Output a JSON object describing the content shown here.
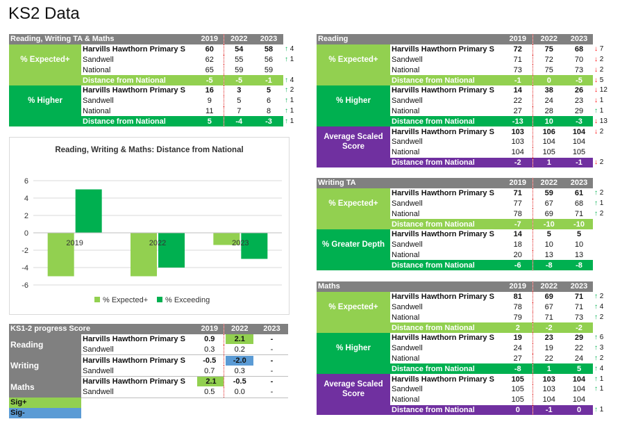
{
  "page_title": "KS2 Data",
  "years": [
    "2019",
    "2022",
    "2023"
  ],
  "rwm": {
    "title": "Reading, Writing TA & Maths",
    "blocks": [
      {
        "label": "% Expected+",
        "color": "light",
        "rows": [
          {
            "name": "Harvills Hawthorn Primary S",
            "vals": [
              "60",
              "54",
              "58"
            ],
            "bold": true,
            "dir": "up",
            "change": "4"
          },
          {
            "name": "Sandwell",
            "vals": [
              "62",
              "55",
              "56"
            ],
            "dir": "up",
            "change": "1"
          },
          {
            "name": "National",
            "vals": [
              "65",
              "59",
              "59"
            ],
            "dir": "",
            "change": ""
          }
        ],
        "dist": {
          "name": "Distance from National",
          "vals": [
            "-5",
            "-5",
            "-1"
          ],
          "dir": "up",
          "change": "4"
        }
      },
      {
        "label": "% Higher",
        "color": "dark",
        "rows": [
          {
            "name": "Harvills Hawthorn Primary S",
            "vals": [
              "16",
              "3",
              "5"
            ],
            "bold": true,
            "dir": "up",
            "change": "2"
          },
          {
            "name": "Sandwell",
            "vals": [
              "9",
              "5",
              "6"
            ],
            "dir": "up",
            "change": "1"
          },
          {
            "name": "National",
            "vals": [
              "11",
              "7",
              "8"
            ],
            "dir": "up",
            "change": "1"
          }
        ],
        "dist": {
          "name": "Distance from National",
          "vals": [
            "5",
            "-4",
            "-3"
          ],
          "dir": "up",
          "change": "1"
        }
      }
    ]
  },
  "chart_data": {
    "type": "bar",
    "title": "Reading, Writing & Maths:  Distance from National",
    "categories": [
      "2019",
      "2022",
      "2023"
    ],
    "series": [
      {
        "name": "% Expected+",
        "values": [
          -5,
          -5,
          -1.4
        ],
        "color": "#92d050"
      },
      {
        "name": "% Exceeding",
        "values": [
          5,
          -4,
          -3
        ],
        "color": "#00b050"
      }
    ],
    "ylim": [
      -6,
      6
    ],
    "yticks": [
      "6",
      "4",
      "2",
      "0",
      "-2",
      "-4",
      "-6"
    ],
    "grid": true,
    "legend": "bottom"
  },
  "progress": {
    "title": "KS1-2 progress Score",
    "key": {
      "sig_plus": "Sig+",
      "sig_minus": "Sig-"
    },
    "subjects": [
      {
        "label": "Reading",
        "rows": [
          {
            "name": "Harvills Hawthorn Primary S",
            "vals": [
              "0.9",
              "2.1",
              "-"
            ],
            "bold": true,
            "hl": [
              "",
              "g",
              ""
            ]
          },
          {
            "name": "Sandwell",
            "vals": [
              "0.3",
              "0.2",
              "-"
            ],
            "hl": [
              "",
              "",
              ""
            ]
          }
        ]
      },
      {
        "label": "Writing",
        "rows": [
          {
            "name": "Harvills Hawthorn Primary S",
            "vals": [
              "-0.5",
              "-2.0",
              "-"
            ],
            "bold": true,
            "hl": [
              "",
              "b",
              ""
            ]
          },
          {
            "name": "Sandwell",
            "vals": [
              "0.7",
              "0.3",
              "-"
            ],
            "hl": [
              "",
              "",
              ""
            ]
          }
        ]
      },
      {
        "label": "Maths",
        "rows": [
          {
            "name": "Harvills Hawthorn Primary S",
            "vals": [
              "2.1",
              "-0.5",
              "-"
            ],
            "bold": true,
            "hl": [
              "g",
              "",
              ""
            ]
          },
          {
            "name": "Sandwell",
            "vals": [
              "0.5",
              "0.0",
              "-"
            ],
            "hl": [
              "",
              "",
              ""
            ]
          }
        ]
      }
    ]
  },
  "reading": {
    "title": "Reading",
    "blocks": [
      {
        "label": "% Expected+",
        "color": "light",
        "rows": [
          {
            "name": "Harvills Hawthorn Primary S",
            "vals": [
              "72",
              "75",
              "68"
            ],
            "bold": true,
            "dir": "down",
            "change": "7"
          },
          {
            "name": "Sandwell",
            "vals": [
              "71",
              "72",
              "70"
            ],
            "dir": "down",
            "change": "2"
          },
          {
            "name": "National",
            "vals": [
              "73",
              "75",
              "73"
            ],
            "dir": "down",
            "change": "2"
          }
        ],
        "dist": {
          "name": "Distance from National",
          "vals": [
            "-1",
            "0",
            "-5"
          ],
          "dir": "down",
          "change": "5"
        }
      },
      {
        "label": "% Higher",
        "color": "dark",
        "rows": [
          {
            "name": "Harvills Hawthorn Primary S",
            "vals": [
              "14",
              "38",
              "26"
            ],
            "bold": true,
            "dir": "down",
            "change": "12"
          },
          {
            "name": "Sandwell",
            "vals": [
              "22",
              "24",
              "23"
            ],
            "dir": "down",
            "change": "1"
          },
          {
            "name": "National",
            "vals": [
              "27",
              "28",
              "29"
            ],
            "dir": "up",
            "change": "1"
          }
        ],
        "dist": {
          "name": "Distance from National",
          "vals": [
            "-13",
            "10",
            "-3"
          ],
          "dir": "down",
          "change": "13"
        }
      },
      {
        "label": "Average Scaled Score",
        "color": "purple",
        "rows": [
          {
            "name": "Harvills Hawthorn Primary S",
            "vals": [
              "103",
              "106",
              "104"
            ],
            "bold": true,
            "dir": "down",
            "change": "2"
          },
          {
            "name": "Sandwell",
            "vals": [
              "103",
              "104",
              "104"
            ],
            "dir": "",
            "change": ""
          },
          {
            "name": "National",
            "vals": [
              "104",
              "105",
              "105"
            ],
            "dir": "",
            "change": ""
          }
        ],
        "dist": {
          "name": "Distance from National",
          "vals": [
            "-2",
            "1",
            "-1"
          ],
          "dir": "down",
          "change": "2"
        }
      }
    ]
  },
  "writing": {
    "title": "Writing TA",
    "blocks": [
      {
        "label": "% Expected+",
        "color": "light",
        "rows": [
          {
            "name": "Harvills Hawthorn Primary S",
            "vals": [
              "71",
              "59",
              "61"
            ],
            "bold": true,
            "dir": "up",
            "change": "2"
          },
          {
            "name": "Sandwell",
            "vals": [
              "77",
              "67",
              "68"
            ],
            "dir": "up",
            "change": "1"
          },
          {
            "name": "National",
            "vals": [
              "78",
              "69",
              "71"
            ],
            "dir": "up",
            "change": "2"
          }
        ],
        "dist": {
          "name": "Distance from National",
          "vals": [
            "-7",
            "-10",
            "-10"
          ],
          "dir": "",
          "change": ""
        }
      },
      {
        "label": "% Greater Depth",
        "color": "dark",
        "rows": [
          {
            "name": "Harvills Hawthorn Primary S",
            "vals": [
              "14",
              "5",
              "5"
            ],
            "bold": true,
            "dir": "",
            "change": ""
          },
          {
            "name": "Sandwell",
            "vals": [
              "18",
              "10",
              "10"
            ],
            "dir": "",
            "change": ""
          },
          {
            "name": "National",
            "vals": [
              "20",
              "13",
              "13"
            ],
            "dir": "",
            "change": ""
          }
        ],
        "dist": {
          "name": "Distance from National",
          "vals": [
            "-6",
            "-8",
            "-8"
          ],
          "dir": "",
          "change": ""
        }
      }
    ]
  },
  "maths": {
    "title": "Maths",
    "blocks": [
      {
        "label": "% Expected+",
        "color": "light",
        "rows": [
          {
            "name": "Harvills Hawthorn Primary S",
            "vals": [
              "81",
              "69",
              "71"
            ],
            "bold": true,
            "dir": "up",
            "change": "2"
          },
          {
            "name": "Sandwell",
            "vals": [
              "78",
              "67",
              "71"
            ],
            "dir": "up",
            "change": "4"
          },
          {
            "name": "National",
            "vals": [
              "79",
              "71",
              "73"
            ],
            "dir": "up",
            "change": "2"
          }
        ],
        "dist": {
          "name": "Distance from National",
          "vals": [
            "2",
            "-2",
            "-2"
          ],
          "dir": "",
          "change": ""
        }
      },
      {
        "label": "% Higher",
        "color": "dark",
        "rows": [
          {
            "name": "Harvills Hawthorn Primary S",
            "vals": [
              "19",
              "23",
              "29"
            ],
            "bold": true,
            "dir": "up",
            "change": "6"
          },
          {
            "name": "Sandwell",
            "vals": [
              "24",
              "19",
              "22"
            ],
            "dir": "up",
            "change": "3"
          },
          {
            "name": "National",
            "vals": [
              "27",
              "22",
              "24"
            ],
            "dir": "up",
            "change": "2"
          }
        ],
        "dist": {
          "name": "Distance from National",
          "vals": [
            "-8",
            "1",
            "5"
          ],
          "dir": "up",
          "change": "4"
        }
      },
      {
        "label": "Average Scaled Score",
        "color": "purple",
        "rows": [
          {
            "name": "Harvills Hawthorn Primary S",
            "vals": [
              "105",
              "103",
              "104"
            ],
            "bold": true,
            "dir": "up",
            "change": "1"
          },
          {
            "name": "Sandwell",
            "vals": [
              "105",
              "103",
              "104"
            ],
            "dir": "up",
            "change": "1"
          },
          {
            "name": "National",
            "vals": [
              "105",
              "104",
              "104"
            ],
            "dir": "",
            "change": ""
          }
        ],
        "dist": {
          "name": "Distance from National",
          "vals": [
            "0",
            "-1",
            "0"
          ],
          "dir": "up",
          "change": "1"
        }
      }
    ]
  }
}
